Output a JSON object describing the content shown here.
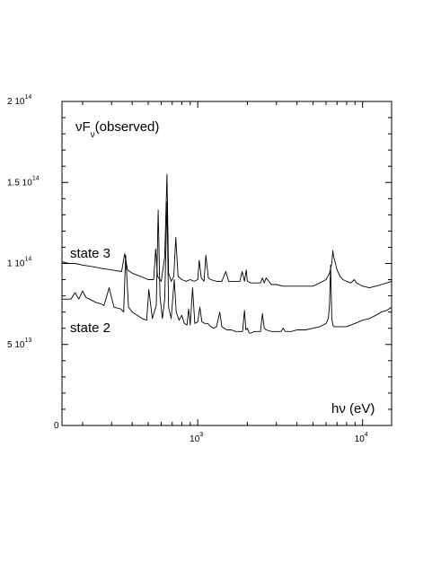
{
  "chart_data": {
    "type": "line",
    "title": "",
    "xscale": "log",
    "xlim": [
      150,
      15000
    ],
    "ylim": [
      0,
      200000000000000.0
    ],
    "x_ticks": [
      {
        "value": 1000,
        "base": "10",
        "exp": "3"
      },
      {
        "value": 10000,
        "base": "10",
        "exp": "4"
      }
    ],
    "y_ticks": [
      {
        "value": 0,
        "base": "0",
        "exp": ""
      },
      {
        "value": 50000000000000.0,
        "base": "5 10",
        "exp": "13"
      },
      {
        "value": 100000000000000.0,
        "base": "1 10",
        "exp": "14"
      },
      {
        "value": 150000000000000.0,
        "base": "1.5 10",
        "exp": "14"
      },
      {
        "value": 200000000000000.0,
        "base": "2 10",
        "exp": "14"
      }
    ],
    "ylabel": {
      "main": "νF",
      "sub": "ν",
      "rest": "(observed)"
    },
    "xlabel": "hν  (eV)",
    "series": [
      {
        "name": "state  3",
        "x": [
          150,
          165,
          180,
          200,
          230,
          260,
          300,
          345,
          360,
          375,
          400,
          450,
          500,
          540,
          555,
          570,
          600,
          630,
          650,
          665,
          690,
          715,
          735,
          760,
          800,
          850,
          900,
          950,
          1000,
          1020,
          1050,
          1090,
          1120,
          1160,
          1200,
          1300,
          1400,
          1480,
          1540,
          1600,
          1700,
          1800,
          1860,
          1920,
          1970,
          2000,
          2100,
          2200,
          2300,
          2400,
          2470,
          2530,
          2600,
          2800,
          3000,
          3300,
          3600,
          4000,
          4500,
          5000,
          5500,
          6000,
          6300,
          6500,
          6600,
          6650,
          6800,
          7000,
          7300,
          7600,
          8000,
          8500,
          8900,
          9200,
          9600,
          10000,
          11000,
          12000,
          13000,
          14000,
          15000
        ],
        "y": [
          101000000000000.0,
          100000000000000.0,
          100000000000000.0,
          99000000000000.0,
          98000000000000.0,
          97000000000000.0,
          96000000000000.0,
          95000000000000.0,
          106000000000000.0,
          96000000000000.0,
          94000000000000.0,
          92000000000000.0,
          90000000000000.0,
          90000000000000.0,
          109000000000000.0,
          92000000000000.0,
          89000000000000.0,
          104000000000000.0,
          155000000000000.0,
          94000000000000.0,
          89000000000000.0,
          92000000000000.0,
          116000000000000.0,
          92000000000000.0,
          90000000000000.0,
          89000000000000.0,
          90000000000000.0,
          89000000000000.0,
          90000000000000.0,
          102000000000000.0,
          91000000000000.0,
          89000000000000.0,
          105000000000000.0,
          91000000000000.0,
          90000000000000.0,
          89000000000000.0,
          89000000000000.0,
          95000000000000.0,
          89000000000000.0,
          89000000000000.0,
          89000000000000.0,
          89000000000000.0,
          95000000000000.0,
          89000000000000.0,
          96000000000000.0,
          89000000000000.0,
          88000000000000.0,
          88000000000000.0,
          88000000000000.0,
          88000000000000.0,
          91000000000000.0,
          88000000000000.0,
          91000000000000.0,
          87000000000000.0,
          87000000000000.0,
          86000000000000.0,
          86000000000000.0,
          86000000000000.0,
          86000000000000.0,
          86000000000000.0,
          88000000000000.0,
          90000000000000.0,
          94000000000000.0,
          100000000000000.0,
          108000000000000.0,
          105000000000000.0,
          101000000000000.0,
          96000000000000.0,
          92000000000000.0,
          90000000000000.0,
          89000000000000.0,
          88000000000000.0,
          90000000000000.0,
          88000000000000.0,
          87000000000000.0,
          86000000000000.0,
          85000000000000.0,
          86000000000000.0,
          87000000000000.0,
          88000000000000.0,
          89000000000000.0
        ]
      },
      {
        "name": "state  2",
        "x": [
          150,
          170,
          180,
          190,
          200,
          210,
          220,
          240,
          260,
          270,
          290,
          310,
          340,
          355,
          365,
          380,
          400,
          430,
          460,
          490,
          505,
          530,
          560,
          575,
          590,
          610,
          630,
          650,
          665,
          690,
          720,
          740,
          770,
          800,
          830,
          860,
          880,
          900,
          930,
          960,
          1000,
          1030,
          1060,
          1100,
          1150,
          1200,
          1250,
          1300,
          1360,
          1400,
          1450,
          1500,
          1600,
          1700,
          1800,
          1870,
          1920,
          1960,
          2000,
          2050,
          2100,
          2200,
          2300,
          2400,
          2470,
          2530,
          2600,
          2800,
          3000,
          3200,
          3300,
          3400,
          3700,
          4000,
          4500,
          5000,
          5500,
          6000,
          6200,
          6300,
          6400,
          6500,
          6600,
          6700,
          6900,
          7200,
          7500,
          8000,
          9000,
          10000,
          11000,
          12000,
          13000,
          14000,
          15000
        ],
        "y": [
          78000000000000.0,
          78000000000000.0,
          82000000000000.0,
          78000000000000.0,
          83000000000000.0,
          79000000000000.0,
          78000000000000.0,
          76000000000000.0,
          75000000000000.0,
          74000000000000.0,
          85000000000000.0,
          73000000000000.0,
          72000000000000.0,
          70000000000000.0,
          105000000000000.0,
          73000000000000.0,
          70000000000000.0,
          68000000000000.0,
          66000000000000.0,
          65000000000000.0,
          84000000000000.0,
          66000000000000.0,
          74000000000000.0,
          133000000000000.0,
          80000000000000.0,
          66000000000000.0,
          78000000000000.0,
          138000000000000.0,
          73000000000000.0,
          66000000000000.0,
          90000000000000.0,
          70000000000000.0,
          65000000000000.0,
          68000000000000.0,
          63000000000000.0,
          62000000000000.0,
          72000000000000.0,
          62000000000000.0,
          85000000000000.0,
          63000000000000.0,
          64000000000000.0,
          73000000000000.0,
          64000000000000.0,
          63000000000000.0,
          63000000000000.0,
          61000000000000.0,
          60000000000000.0,
          61000000000000.0,
          70000000000000.0,
          61000000000000.0,
          60000000000000.0,
          59000000000000.0,
          59000000000000.0,
          58000000000000.0,
          58000000000000.0,
          58000000000000.0,
          71000000000000.0,
          59000000000000.0,
          60000000000000.0,
          57000000000000.0,
          57000000000000.0,
          58000000000000.0,
          58000000000000.0,
          58000000000000.0,
          69000000000000.0,
          60000000000000.0,
          59000000000000.0,
          58000000000000.0,
          58000000000000.0,
          58000000000000.0,
          60000000000000.0,
          58000000000000.0,
          58000000000000.0,
          59000000000000.0,
          59000000000000.0,
          60000000000000.0,
          61000000000000.0,
          63000000000000.0,
          66000000000000.0,
          75000000000000.0,
          99000000000000.0,
          66000000000000.0,
          62000000000000.0,
          61000000000000.0,
          61000000000000.0,
          61000000000000.0,
          61000000000000.0,
          61000000000000.0,
          63000000000000.0,
          65000000000000.0,
          66000000000000.0,
          68000000000000.0,
          70000000000000.0,
          71000000000000.0,
          73000000000000.0
        ]
      }
    ],
    "colors": {
      "line": "#000000",
      "axis": "#000000",
      "background": "#ffffff"
    }
  }
}
